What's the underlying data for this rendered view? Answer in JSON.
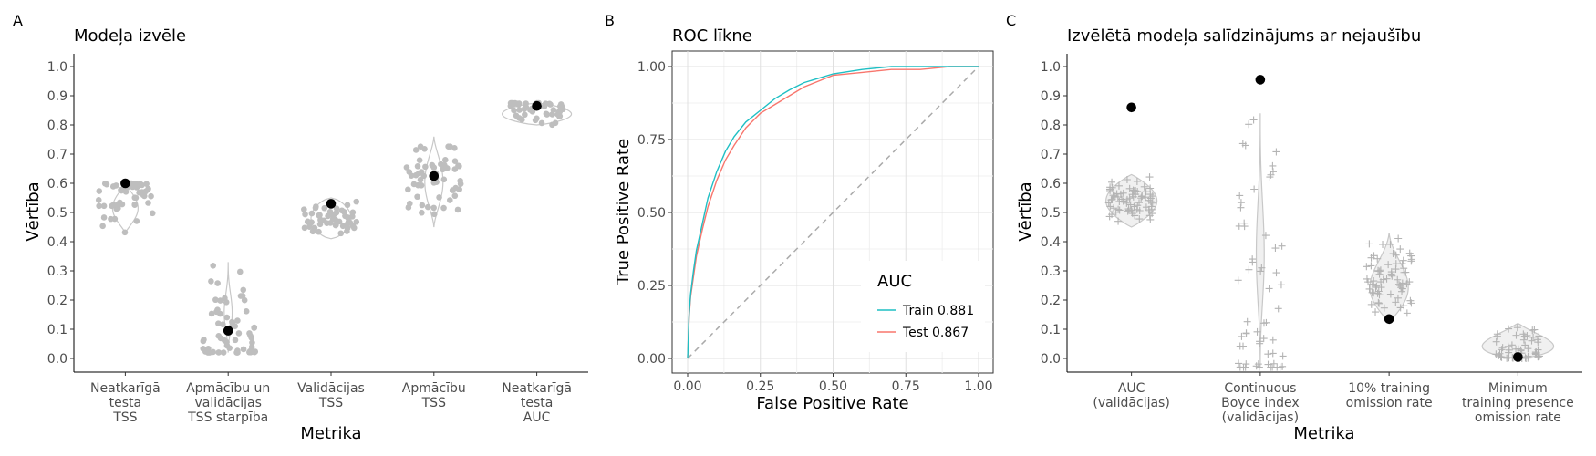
{
  "chart_data": [
    {
      "panel": "A",
      "type": "scatter",
      "title": "Modeļa izvēle",
      "xlabel": "Metrika",
      "ylabel": "Vērtība",
      "ylim": [
        0,
        1
      ],
      "yticks": [
        "0.0",
        "0.1",
        "0.2",
        "0.3",
        "0.4",
        "0.5",
        "0.6",
        "0.7",
        "0.8",
        "0.9",
        "1.0"
      ],
      "categories": [
        [
          "Neatkarīgā",
          "testa",
          "TSS"
        ],
        [
          "Apmācību un",
          "validācijas",
          "TSS starpība"
        ],
        [
          "Validācijas",
          "TSS"
        ],
        [
          "Apmācību",
          "TSS"
        ],
        [
          "Neatkarīgā",
          "testa",
          "AUC"
        ]
      ],
      "selected_values": [
        0.6,
        0.095,
        0.53,
        0.625,
        0.865
      ],
      "distribution_ranges": [
        [
          0.43,
          0.6
        ],
        [
          0.02,
          0.33
        ],
        [
          0.41,
          0.55
        ],
        [
          0.45,
          0.76
        ],
        [
          0.8,
          0.875
        ]
      ],
      "point_color": "#bebebe",
      "selected_color": "#000000"
    },
    {
      "panel": "B",
      "type": "line",
      "title": "ROC līkne",
      "xlabel": "False Positive Rate",
      "ylabel": "True Positive Rate",
      "xlim": [
        0,
        1
      ],
      "ylim": [
        0,
        1
      ],
      "xticks": [
        "0.00",
        "0.25",
        "0.50",
        "0.75",
        "1.00"
      ],
      "yticks": [
        "0.00",
        "0.25",
        "0.50",
        "0.75",
        "1.00"
      ],
      "legend_title": "AUC",
      "legend_position": "bottom-right",
      "series": [
        {
          "name": "Train 0.881",
          "color": "#1fbfc4",
          "x": [
            0,
            0.005,
            0.01,
            0.02,
            0.03,
            0.05,
            0.07,
            0.1,
            0.13,
            0.16,
            0.2,
            0.25,
            0.3,
            0.35,
            0.4,
            0.45,
            0.5,
            0.6,
            0.7,
            0.8,
            0.9,
            1.0
          ],
          "y": [
            0,
            0.15,
            0.22,
            0.3,
            0.37,
            0.46,
            0.55,
            0.64,
            0.71,
            0.76,
            0.81,
            0.85,
            0.89,
            0.92,
            0.945,
            0.96,
            0.975,
            0.99,
            1.0,
            1.0,
            1.0,
            1.0
          ]
        },
        {
          "name": "Test 0.867",
          "color": "#f8766d",
          "x": [
            0,
            0.005,
            0.01,
            0.02,
            0.03,
            0.05,
            0.07,
            0.1,
            0.13,
            0.16,
            0.2,
            0.25,
            0.3,
            0.35,
            0.4,
            0.45,
            0.5,
            0.6,
            0.7,
            0.8,
            0.9,
            1.0
          ],
          "y": [
            0,
            0.14,
            0.21,
            0.28,
            0.35,
            0.44,
            0.52,
            0.61,
            0.68,
            0.73,
            0.79,
            0.84,
            0.87,
            0.9,
            0.93,
            0.95,
            0.97,
            0.98,
            0.99,
            0.99,
            1.0,
            1.0
          ]
        }
      ],
      "reference_line": [
        [
          0,
          0
        ],
        [
          1,
          1
        ]
      ]
    },
    {
      "panel": "C",
      "type": "scatter",
      "title": "Izvēlētā modeļa salīdzinājums ar nejaušību",
      "xlabel": "Metrika",
      "ylabel": "Vērtība",
      "ylim": [
        0,
        1
      ],
      "yticks": [
        "0.0",
        "0.1",
        "0.2",
        "0.3",
        "0.4",
        "0.5",
        "0.6",
        "0.7",
        "0.8",
        "0.9",
        "1.0"
      ],
      "categories": [
        [
          "AUC",
          "(validācijas)"
        ],
        [
          "Continuous",
          "Boyce index",
          "(validācijas)"
        ],
        [
          "10% training",
          "omission rate"
        ],
        [
          "Minimum",
          "training presence",
          "omission rate"
        ]
      ],
      "selected_values": [
        0.86,
        0.955,
        0.135,
        0.005
      ],
      "distribution_ranges": [
        [
          0.45,
          0.63
        ],
        [
          -0.03,
          0.84
        ],
        [
          0.12,
          0.43
        ],
        [
          0.0,
          0.12
        ]
      ],
      "point_color": "#bebebe",
      "selected_color": "#000000"
    }
  ],
  "panels": {
    "A": {
      "letter": "A"
    },
    "B": {
      "letter": "B"
    },
    "C": {
      "letter": "C"
    }
  }
}
